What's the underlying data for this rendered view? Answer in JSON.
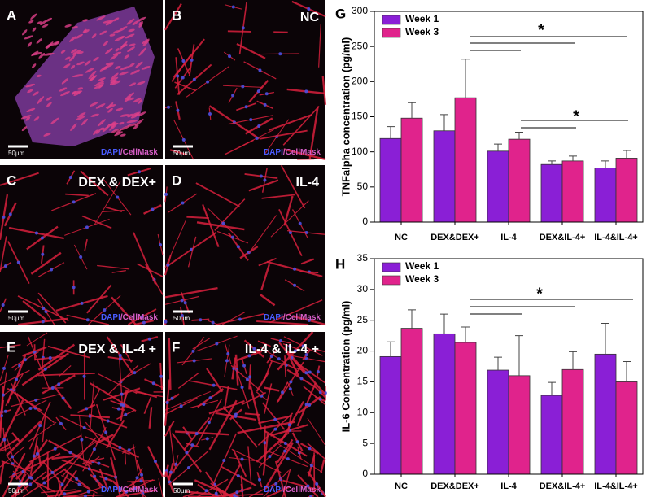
{
  "panels": [
    {
      "letter": "A",
      "scale": "50µm",
      "stain_dapi": "DAPI",
      "stain_cellmask": "/CellMask"
    },
    {
      "letter": "B",
      "title": "NC",
      "scale": "50µm",
      "stain_dapi": "DAPI",
      "stain_cellmask": "/CellMask"
    },
    {
      "letter": "C",
      "title": "DEX & DEX+",
      "scale": "50µm",
      "stain_dapi": "DAPI",
      "stain_cellmask": "/CellMask"
    },
    {
      "letter": "D",
      "title": "IL-4",
      "scale": "50µm",
      "stain_dapi": "DAPI",
      "stain_cellmask": "/CellMask"
    },
    {
      "letter": "E",
      "title": "DEX & IL-4 +",
      "scale": "50µm",
      "stain_dapi": "DAPI",
      "stain_cellmask": "/CellMask"
    },
    {
      "letter": "F",
      "title": "IL-4 & IL-4 +",
      "scale": "50µm",
      "stain_dapi": "DAPI",
      "stain_cellmask": "/CellMask"
    }
  ],
  "chart_data": [
    {
      "type": "bar",
      "letter": "G",
      "ylabel": "TNFalpha concentration (pg/ml)",
      "categories": [
        "NC",
        "DEX&DEX+",
        "IL-4",
        "DEX&IL-4+",
        "IL-4&IL-4+"
      ],
      "series": [
        {
          "name": "Week 1",
          "color": "#8a1fd6",
          "values": [
            119,
            130,
            101,
            82,
            77
          ],
          "errors": [
            17,
            23,
            10,
            5,
            10
          ]
        },
        {
          "name": "Week 3",
          "color": "#e0238c",
          "values": [
            148,
            177,
            118,
            87,
            91
          ],
          "errors": [
            22,
            55,
            10,
            7,
            11
          ]
        }
      ],
      "ylim": [
        0,
        300
      ],
      "yticks": [
        0,
        50,
        100,
        150,
        200,
        250,
        300
      ],
      "legend": "upper left",
      "annotations": [
        "*",
        "*"
      ]
    },
    {
      "type": "bar",
      "letter": "H",
      "ylabel": "IL-6 Concentration (pg/ml)",
      "categories": [
        "NC",
        "DEX&DEX+",
        "IL-4",
        "DEX&IL-4+",
        "IL-4&IL-4+"
      ],
      "series": [
        {
          "name": "Week 1",
          "color": "#8a1fd6",
          "values": [
            19.1,
            22.8,
            16.9,
            12.8,
            19.5
          ],
          "errors": [
            2.4,
            3.2,
            2.1,
            2.1,
            5
          ]
        },
        {
          "name": "Week 3",
          "color": "#e0238c",
          "values": [
            23.7,
            21.4,
            16,
            17,
            15
          ],
          "errors": [
            3,
            2.5,
            6.5,
            2.9,
            3.3
          ]
        }
      ],
      "ylim": [
        0,
        35
      ],
      "yticks": [
        0,
        5,
        10,
        15,
        20,
        25,
        30,
        35
      ],
      "legend": "upper left",
      "annotations": [
        "*"
      ]
    }
  ]
}
